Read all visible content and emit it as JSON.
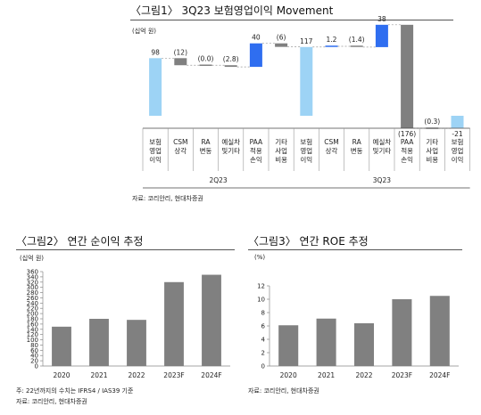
{
  "fig1": {
    "title": "〈그림1〉 3Q23  보험영업이익  Movement",
    "unit": "(십억 원)",
    "source": "자료: 코리안리, 현대차증권",
    "chart_data": {
      "type": "waterfall",
      "title": "3Q23 보험영업이익 Movement",
      "ylabel": "(십억 원)",
      "groups": [
        {
          "label": "2Q23",
          "steps": [
            {
              "label": "보험영업이익",
              "value": 98,
              "kind": "total",
              "display": "98"
            },
            {
              "label": "CSM 상각",
              "value": -12,
              "kind": "change",
              "display": "(12)"
            },
            {
              "label": "RA 변동",
              "value": 0.0,
              "kind": "change",
              "display": "(0.0)"
            },
            {
              "label": "예실차 및기타",
              "value": -2.8,
              "kind": "change",
              "display": "(2.8)"
            },
            {
              "label": "PAA 적용 손익",
              "value": 40,
              "kind": "change",
              "display": "40"
            },
            {
              "label": "기타 사업 비용",
              "value": -6,
              "kind": "change",
              "display": "(6)"
            }
          ]
        },
        {
          "label": "3Q23",
          "steps": [
            {
              "label": "보험영업이익",
              "value": 117,
              "kind": "total",
              "display": "117"
            },
            {
              "label": "CSM 상각",
              "value": 1.2,
              "kind": "change",
              "display": "1.2"
            },
            {
              "label": "RA 변동",
              "value": -1.4,
              "kind": "change",
              "display": "(1.4)"
            },
            {
              "label": "예실차 및기타",
              "value": 38,
              "kind": "change",
              "display": "38"
            },
            {
              "label": "PAA 적용 손익",
              "value": -176,
              "kind": "change",
              "display": "(176)"
            },
            {
              "label": "기타 사업 비용",
              "value": -0.3,
              "kind": "change",
              "display": "(0.3)"
            },
            {
              "label": "보험영업이익",
              "value": -21,
              "kind": "total",
              "display": "-21"
            }
          ]
        }
      ],
      "colors": {
        "total": "#9dd3f5",
        "increase": "#2f6ef0",
        "decrease": "#808080",
        "connector": "#9a9a9a"
      }
    }
  },
  "fig2": {
    "title": "〈그림2〉 연간 순이익 추정",
    "unit": "(십억 원)",
    "note": "주: 22년까지의 수치는 IFRS4 / IAS39 기준",
    "source": "자료: 코리안리, 현대차증권",
    "chart_data": {
      "type": "bar",
      "categories": [
        "2020",
        "2021",
        "2022",
        "2023F",
        "2024F"
      ],
      "values": [
        150,
        180,
        176,
        320,
        348
      ],
      "ylabel": "(십억 원)",
      "ylim": [
        0,
        360
      ],
      "yticks": [
        "0",
        "20",
        "40",
        "60",
        "80",
        "100",
        "120",
        "140",
        "160",
        "180",
        "200",
        "220",
        "240",
        "260",
        "280",
        "300",
        "320",
        "340",
        "360"
      ],
      "bar_color": "#808080"
    }
  },
  "fig3": {
    "title": "〈그림3〉 연간 ROE 추정",
    "unit": "(%)",
    "source": "자료: 코리안리, 현대차증권",
    "chart_data": {
      "type": "bar",
      "categories": [
        "2020",
        "2021",
        "2022",
        "2023F",
        "2024F"
      ],
      "values": [
        6.1,
        7.1,
        6.4,
        10.0,
        10.5
      ],
      "ylabel": "(%)",
      "ylim": [
        0,
        12
      ],
      "yticks": [
        "0",
        "2",
        "4",
        "6",
        "8",
        "10",
        "12"
      ],
      "bar_color": "#808080"
    }
  }
}
